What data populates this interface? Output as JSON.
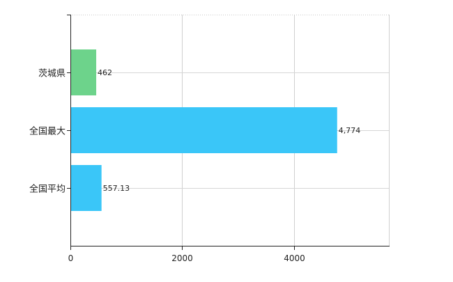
{
  "chart_data": {
    "type": "bar",
    "orientation": "horizontal",
    "categories": [
      "茨城県",
      "全国最大",
      "全国平均"
    ],
    "values": [
      462,
      4774,
      557.13
    ],
    "value_labels": [
      "462",
      "4,774",
      "557.13"
    ],
    "bar_colors": [
      "#6dd38b",
      "#3ac6f8",
      "#3ac6f8"
    ],
    "x_ticks": [
      0,
      2000,
      4000
    ],
    "x_tick_labels": [
      "0",
      "2000",
      "4000"
    ],
    "xlim": [
      0,
      5700
    ],
    "grid": true,
    "title": "",
    "xlabel": "",
    "ylabel": ""
  }
}
